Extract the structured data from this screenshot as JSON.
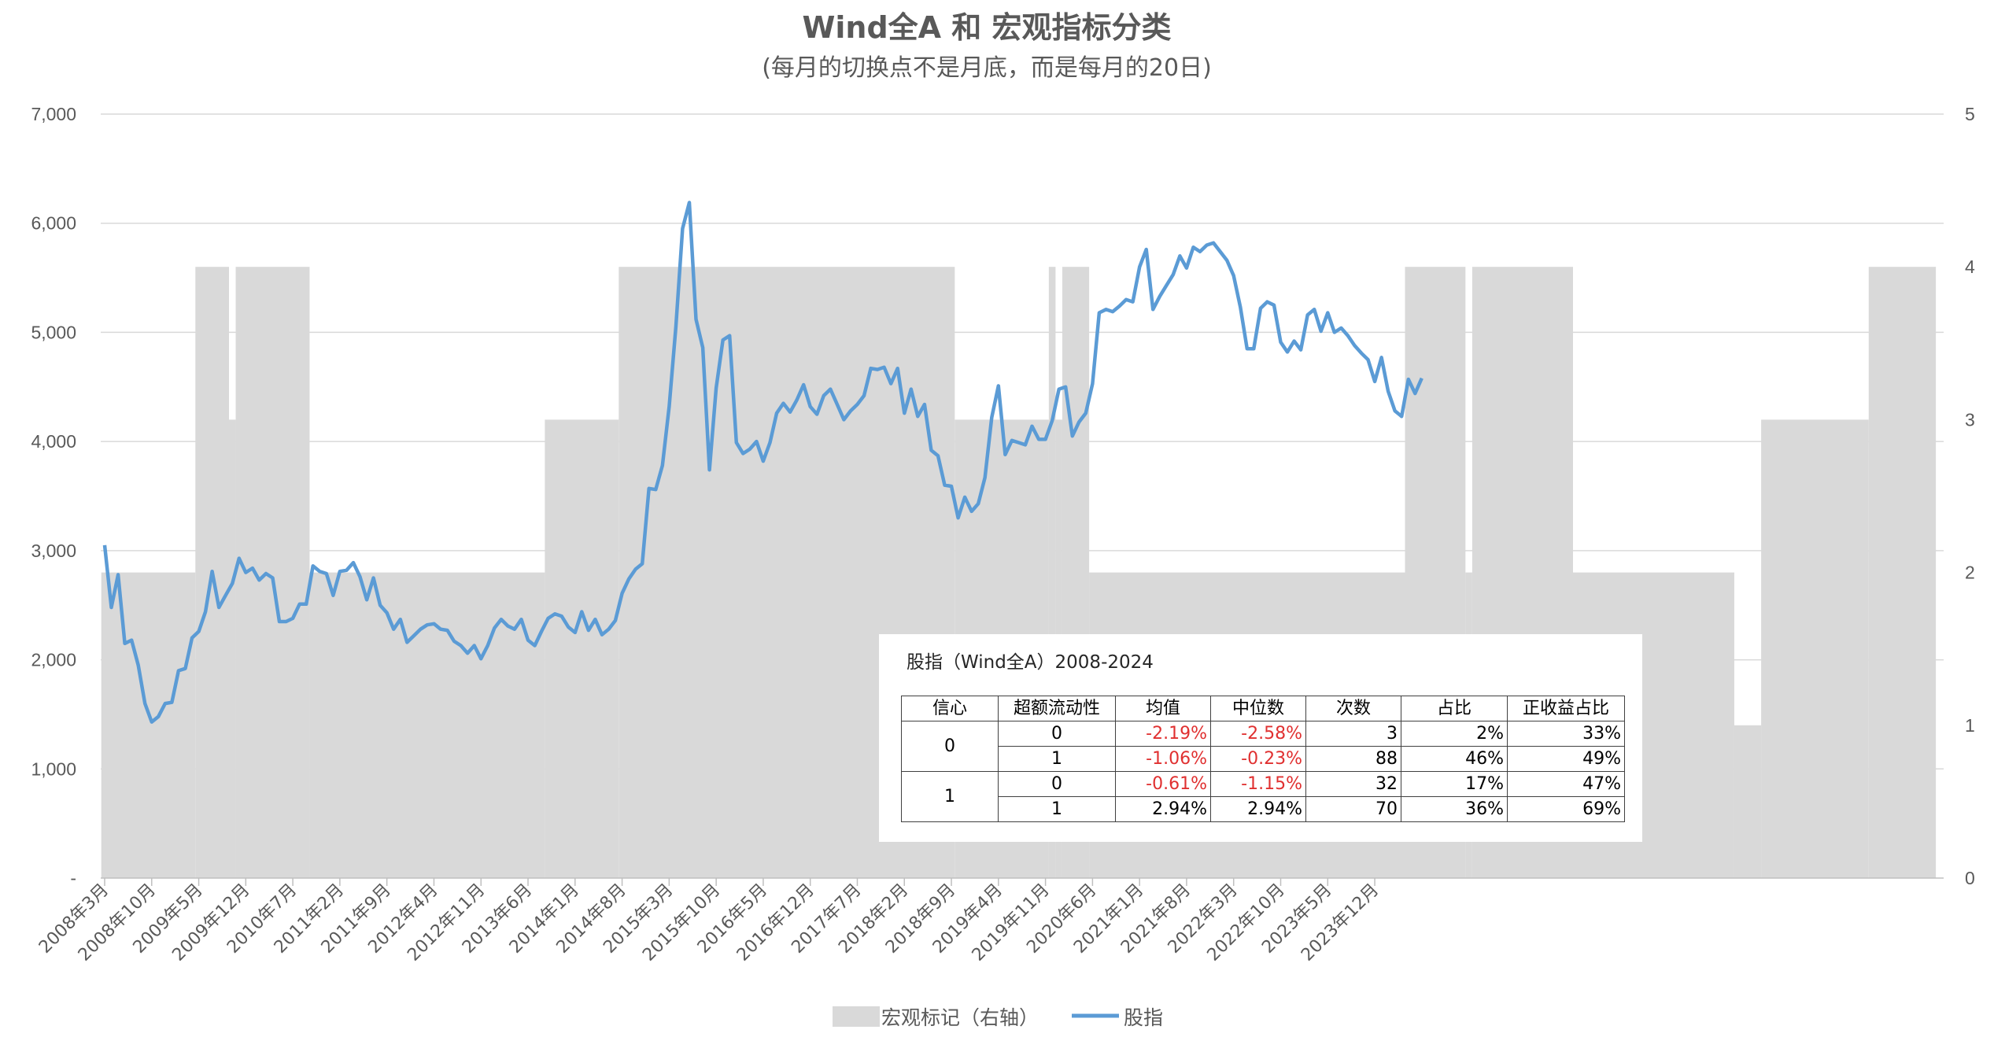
{
  "chart_data": {
    "type": "combo",
    "title": "Wind全A 和 宏观指标分类",
    "subtitle": "(每月的切换点不是月底，而是每月的20日)",
    "y_left": {
      "ylim": [
        0,
        7000
      ],
      "ticks": [
        {
          "v": 0,
          "label": "-"
        },
        {
          "v": 1000,
          "label": "1,000"
        },
        {
          "v": 2000,
          "label": "2,000"
        },
        {
          "v": 3000,
          "label": "3,000"
        },
        {
          "v": 4000,
          "label": "4,000"
        },
        {
          "v": 5000,
          "label": "5,000"
        },
        {
          "v": 6000,
          "label": "6,000"
        },
        {
          "v": 7000,
          "label": "7,000"
        }
      ]
    },
    "y_right": {
      "ylim": [
        0,
        5
      ],
      "ticks": [
        "0",
        "1",
        "2",
        "3",
        "4",
        "5"
      ]
    },
    "x_start": "2008-03",
    "x_tick_labels": [
      "2008年3月",
      "2008年10月",
      "2009年5月",
      "2009年12月",
      "2010年7月",
      "2011年2月",
      "2011年9月",
      "2012年4月",
      "2012年11月",
      "2013年6月",
      "2014年1月",
      "2014年8月",
      "2015年3月",
      "2015年10月",
      "2016年5月",
      "2016年12月",
      "2017年7月",
      "2018年2月",
      "2018年9月",
      "2019年4月",
      "2019年11月",
      "2020年6月",
      "2021年1月",
      "2021年8月",
      "2022年3月",
      "2022年10月",
      "2023年5月",
      "2023年12月"
    ],
    "grid": true,
    "legend_position": "bottom",
    "series": [
      {
        "name": "宏观标记（右轴）",
        "kind": "area",
        "axis": "right",
        "color": "#d9d9d9",
        "segments": [
          {
            "from": 0,
            "to": 13,
            "value": 2
          },
          {
            "from": 14,
            "to": 18,
            "value": 4
          },
          {
            "from": 19,
            "to": 19,
            "value": 3
          },
          {
            "from": 20,
            "to": 30,
            "value": 4
          },
          {
            "from": 31,
            "to": 65,
            "value": 2
          },
          {
            "from": 66,
            "to": 76,
            "value": 3
          },
          {
            "from": 77,
            "to": 126,
            "value": 4
          },
          {
            "from": 127,
            "to": 140,
            "value": 3
          },
          {
            "from": 141,
            "to": 141,
            "value": 4
          },
          {
            "from": 142,
            "to": 142,
            "value": 3
          },
          {
            "from": 143,
            "to": 146,
            "value": 4
          },
          {
            "from": 147,
            "to": 193,
            "value": 2
          },
          {
            "from": 194,
            "to": 202,
            "value": 4
          },
          {
            "from": 203,
            "to": 203,
            "value": 2
          },
          {
            "from": 204,
            "to": 218,
            "value": 4
          },
          {
            "from": 219,
            "to": 242,
            "value": 2
          },
          {
            "from": 243,
            "to": 246,
            "value": 1
          },
          {
            "from": 247,
            "to": 262,
            "value": 3
          },
          {
            "from": 263,
            "to": 272,
            "value": 4
          }
        ]
      },
      {
        "name": "股指",
        "kind": "line",
        "axis": "left",
        "color": "#5b9bd5",
        "values": [
          3050,
          2480,
          2780,
          2150,
          2180,
          1950,
          1600,
          1430,
          1480,
          1600,
          1610,
          1900,
          1920,
          2200,
          2260,
          2440,
          2810,
          2480,
          2590,
          2700,
          2930,
          2800,
          2840,
          2730,
          2790,
          2750,
          2350,
          2350,
          2380,
          2510,
          2510,
          2860,
          2810,
          2790,
          2590,
          2810,
          2820,
          2890,
          2760,
          2550,
          2750,
          2500,
          2430,
          2280,
          2370,
          2160,
          2220,
          2280,
          2320,
          2330,
          2280,
          2270,
          2170,
          2130,
          2060,
          2130,
          2010,
          2130,
          2290,
          2370,
          2310,
          2280,
          2370,
          2180,
          2130,
          2260,
          2380,
          2420,
          2400,
          2300,
          2250,
          2440,
          2270,
          2370,
          2230,
          2280,
          2360,
          2610,
          2740,
          2830,
          2880,
          3570,
          3560,
          3780,
          4320,
          5050,
          5950,
          6190,
          5120,
          4860,
          3740,
          4490,
          4930,
          4970,
          3990,
          3890,
          3930,
          4000,
          3820,
          3990,
          4260,
          4350,
          4270,
          4380,
          4520,
          4320,
          4250,
          4420,
          4480,
          4340,
          4200,
          4280,
          4340,
          4420,
          4670,
          4660,
          4680,
          4530,
          4670,
          4260,
          4480,
          4230,
          4340,
          3920,
          3870,
          3600,
          3590,
          3300,
          3490,
          3360,
          3430,
          3670,
          4220,
          4510,
          3880,
          4010,
          3990,
          3970,
          4140,
          4020,
          4020,
          4190,
          4480,
          4500,
          4050,
          4180,
          4260,
          4530,
          5180,
          5210,
          5190,
          5240,
          5300,
          5280,
          5600,
          5760,
          5210,
          5330,
          5430,
          5530,
          5700,
          5590,
          5780,
          5740,
          5800,
          5820,
          5740,
          5660,
          5520,
          5230,
          4850,
          4850,
          5220,
          5280,
          5250,
          4910,
          4820,
          4920,
          4840,
          5160,
          5210,
          5010,
          5180,
          5000,
          5040,
          4970,
          4880,
          4810,
          4750,
          4550,
          4770,
          4460,
          4280,
          4230,
          4570,
          4440,
          4580
        ]
      }
    ],
    "annotation_table": {
      "title": "股指（Wind全A）2008-2024",
      "headers": [
        "信心",
        "超额流动性",
        "均值",
        "中位数",
        "次数",
        "占比",
        "正收益占比"
      ],
      "rows": [
        {
          "confidence": "0",
          "liquidity": "0",
          "mean": "-2.19%",
          "median": "-2.58%",
          "count": "3",
          "share": "2%",
          "positive_share": "33%"
        },
        {
          "confidence": "0",
          "liquidity": "1",
          "mean": "-1.06%",
          "median": "-0.23%",
          "count": "88",
          "share": "46%",
          "positive_share": "49%"
        },
        {
          "confidence": "1",
          "liquidity": "0",
          "mean": "-0.61%",
          "median": "-1.15%",
          "count": "32",
          "share": "17%",
          "positive_share": "47%"
        },
        {
          "confidence": "1",
          "liquidity": "1",
          "mean": "2.94%",
          "median": "2.94%",
          "count": "70",
          "share": "36%",
          "positive_share": "69%"
        }
      ]
    }
  }
}
